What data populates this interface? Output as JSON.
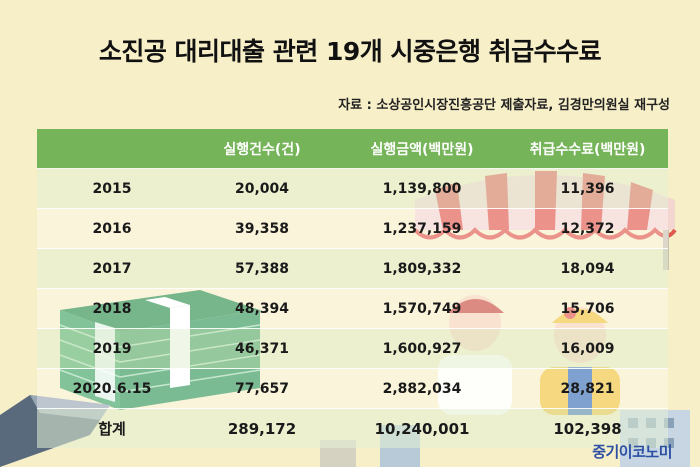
{
  "title": "소진공 대리대출 관련 19개 시중은행 취급수수료",
  "source": "자료 : 소상공인시장진흥공단 제출자료, 김경만의원실 재구성",
  "table": {
    "headers": [
      "",
      "실행건수(건)",
      "실행금액(백만원)",
      "취급수수료(백만원)"
    ],
    "rows": [
      [
        "2015",
        "20,004",
        "1,139,800",
        "11,396"
      ],
      [
        "2016",
        "39,358",
        "1,237,159",
        "12,372"
      ],
      [
        "2017",
        "57,388",
        "1,809,332",
        "18,094"
      ],
      [
        "2018",
        "48,394",
        "1,570,749",
        "15,706"
      ],
      [
        "2019",
        "46,371",
        "1,600,927",
        "16,009"
      ],
      [
        "2020.6.15",
        "77,657",
        "2,882,034",
        "28,821"
      ]
    ],
    "total": [
      "합계",
      "289,172",
      "10,240,001",
      "102,398"
    ]
  },
  "logo": "중기이코노미",
  "colors": {
    "background": "#f7efc8",
    "header_green": "#6eb052",
    "logo_blue": "#2c4fa3"
  }
}
